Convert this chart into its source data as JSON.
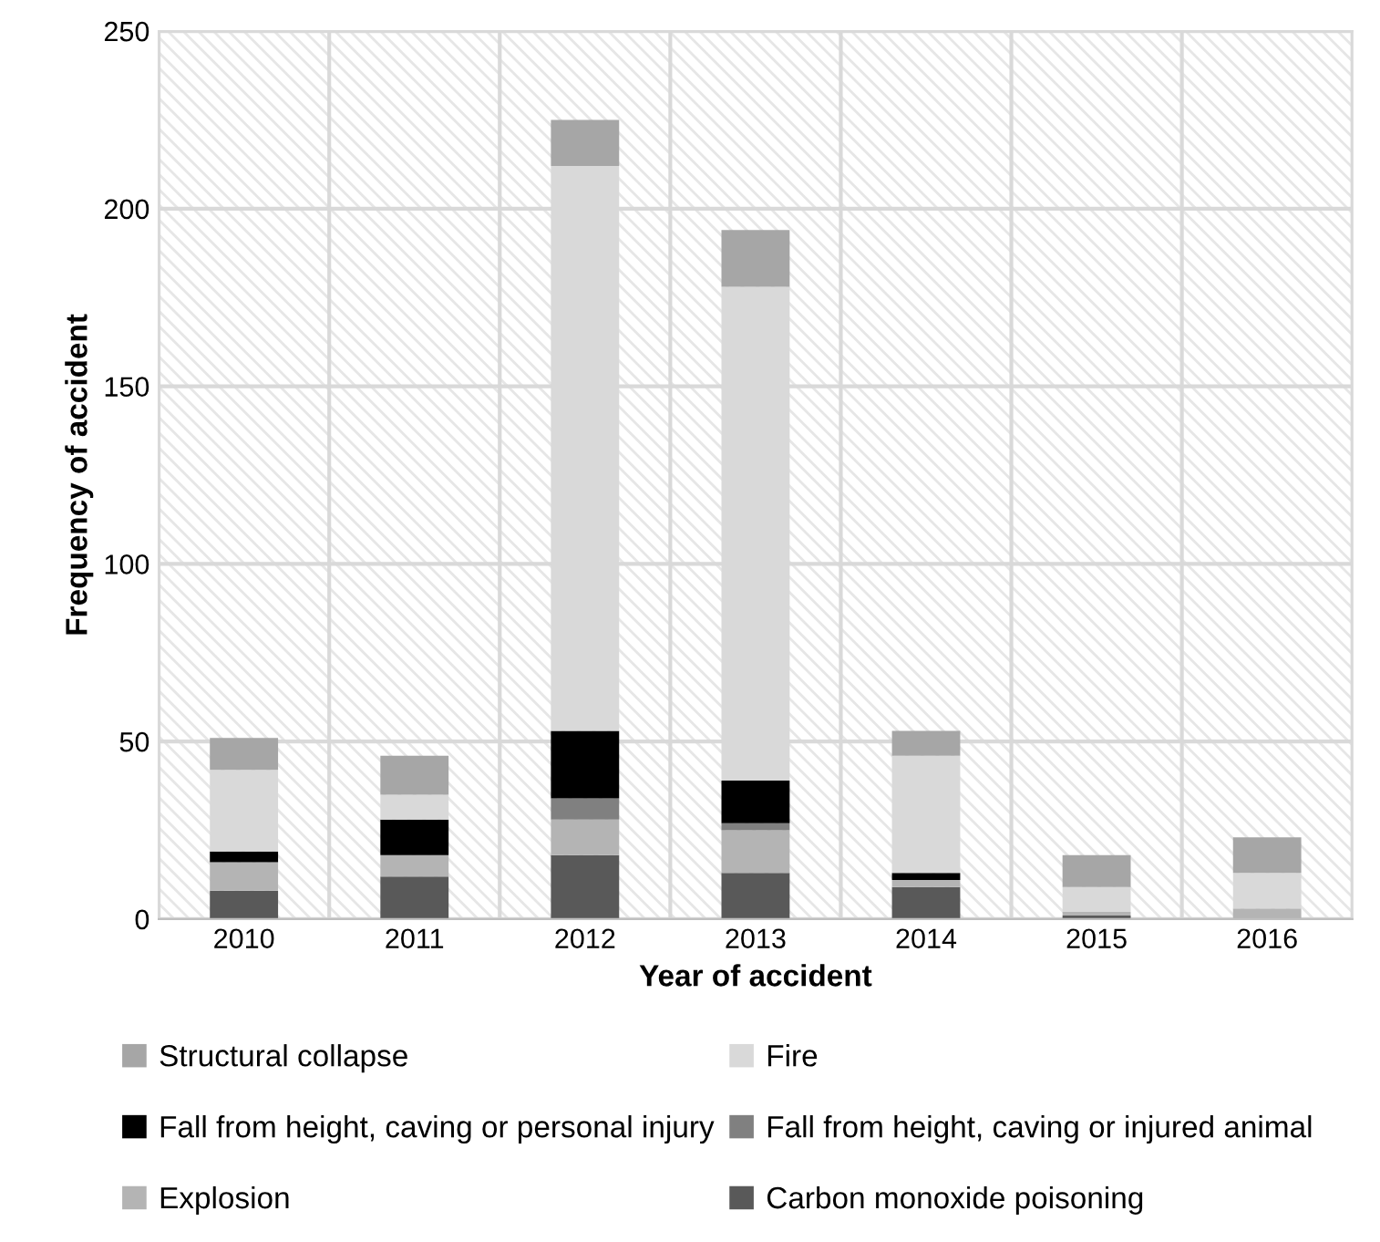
{
  "chart_data": {
    "type": "bar",
    "stacked": true,
    "xlabel": "Year of accident",
    "ylabel": "Frequency of accident",
    "categories": [
      "2010",
      "2011",
      "2012",
      "2013",
      "2014",
      "2015",
      "2016"
    ],
    "series": [
      {
        "name": "Carbon monoxide poisoning",
        "color": "#595959",
        "values": [
          8,
          12,
          18,
          13,
          9,
          1,
          0
        ]
      },
      {
        "name": "Explosion",
        "color": "#b4b4b4",
        "values": [
          8,
          6,
          10,
          12,
          2,
          1,
          3
        ]
      },
      {
        "name": "Fall from height, caving or injured animal",
        "color": "#808080",
        "values": [
          0,
          0,
          6,
          2,
          0,
          0,
          0
        ]
      },
      {
        "name": "Fall from height, caving or personal injury",
        "color": "#000000",
        "values": [
          3,
          10,
          19,
          12,
          2,
          0,
          0
        ]
      },
      {
        "name": "Fire",
        "color": "#d9d9d9",
        "values": [
          23,
          7,
          159,
          139,
          33,
          7,
          10
        ]
      },
      {
        "name": "Structural collapse",
        "color": "#a6a6a6",
        "values": [
          9,
          11,
          13,
          16,
          7,
          9,
          10
        ]
      }
    ],
    "ylim": [
      0,
      250
    ],
    "yticks": [
      0,
      50,
      100,
      150,
      200,
      250
    ],
    "grid": true,
    "legend": "bottom"
  }
}
